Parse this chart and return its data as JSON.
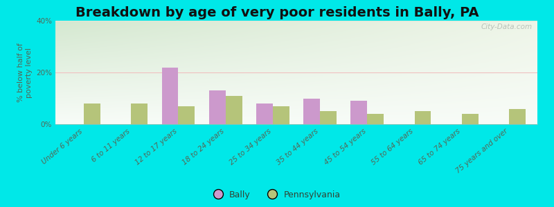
{
  "title": "Breakdown by age of very poor residents in Bally, PA",
  "ylabel": "% below half of\npoverty level",
  "categories": [
    "Under 6 years",
    "6 to 11 years",
    "12 to 17 years",
    "18 to 24 years",
    "25 to 34 years",
    "35 to 44 years",
    "45 to 54 years",
    "55 to 64 years",
    "65 to 74 years",
    "75 years and over"
  ],
  "bally_values": [
    0,
    0,
    22,
    13,
    8,
    10,
    9,
    0,
    0,
    0
  ],
  "pa_values": [
    8,
    8,
    7,
    11,
    7,
    5,
    4,
    5,
    4,
    6
  ],
  "bally_color": "#cc99cc",
  "pa_color": "#b5c47a",
  "ylim": [
    0,
    40
  ],
  "yticks": [
    0,
    20,
    40
  ],
  "ytick_labels": [
    "0%",
    "20%",
    "40%"
  ],
  "bg_topleft": "#d4e8d0",
  "bg_topright": "#eef5e8",
  "bg_bottomleft": "#eef5e8",
  "bg_bottomright": "#f8fcf8",
  "outer_bg": "#00e8e8",
  "bar_width": 0.35,
  "title_fontsize": 14,
  "axis_label_fontsize": 8,
  "tick_label_fontsize": 7.5,
  "legend_label_bally": "Bally",
  "legend_label_pa": "Pennsylvania",
  "watermark": "City-Data.com",
  "grid_color": "#e0e8d8",
  "grid_20_color": "#f0c0c0"
}
